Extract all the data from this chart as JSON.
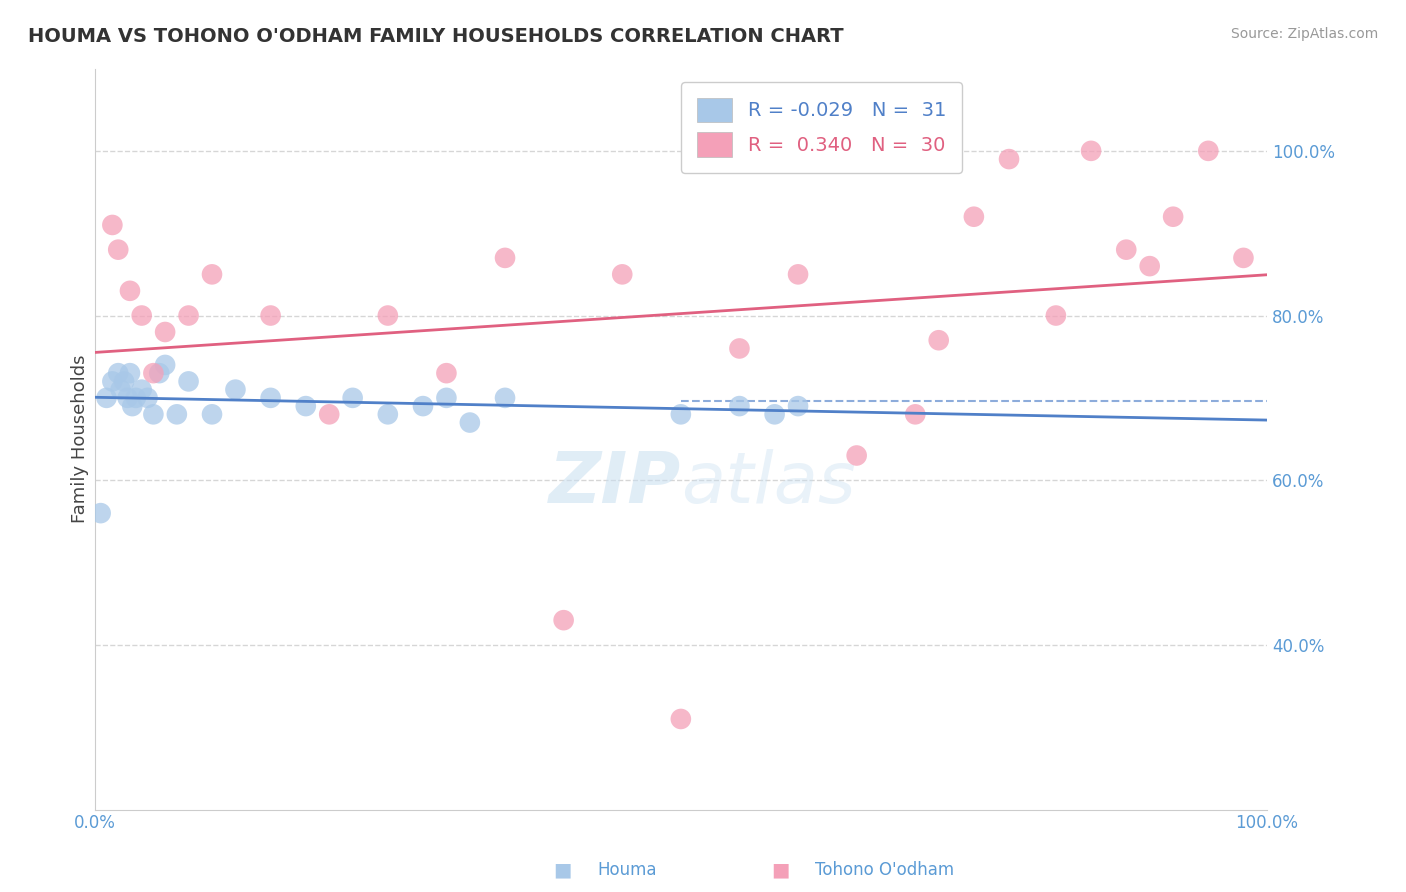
{
  "title": "HOUMA VS TOHONO O'ODHAM FAMILY HOUSEHOLDS CORRELATION CHART",
  "source": "Source: ZipAtlas.com",
  "ylabel": "Family Households",
  "houma_R": -0.029,
  "houma_N": 31,
  "tohono_R": 0.34,
  "tohono_N": 30,
  "houma_color": "#A8C8E8",
  "tohono_color": "#F4A0B8",
  "houma_line_color": "#5080C8",
  "tohono_line_color": "#E06080",
  "background_color": "#FFFFFF",
  "grid_color": "#CCCCCC",
  "houma_x": [
    0.5,
    1.0,
    1.5,
    2.0,
    2.2,
    2.5,
    2.8,
    3.0,
    3.2,
    3.5,
    4.0,
    4.5,
    5.0,
    5.5,
    6.0,
    7.0,
    8.0,
    10.0,
    12.0,
    15.0,
    18.0,
    22.0,
    25.0,
    28.0,
    30.0,
    32.0,
    35.0,
    50.0,
    55.0,
    58.0,
    60.0
  ],
  "houma_y": [
    56.0,
    70.0,
    72.0,
    73.0,
    71.0,
    72.0,
    70.0,
    73.0,
    69.0,
    70.0,
    71.0,
    70.0,
    68.0,
    73.0,
    74.0,
    68.0,
    72.0,
    68.0,
    71.0,
    70.0,
    69.0,
    70.0,
    68.0,
    69.0,
    70.0,
    67.0,
    70.0,
    68.0,
    69.0,
    68.0,
    69.0
  ],
  "tohono_x": [
    1.5,
    2.0,
    3.0,
    4.0,
    5.0,
    6.0,
    8.0,
    10.0,
    15.0,
    20.0,
    25.0,
    30.0,
    35.0,
    40.0,
    45.0,
    50.0,
    55.0,
    60.0,
    65.0,
    70.0,
    72.0,
    75.0,
    78.0,
    82.0,
    85.0,
    88.0,
    90.0,
    92.0,
    95.0,
    98.0
  ],
  "tohono_y": [
    91.0,
    88.0,
    83.0,
    80.0,
    73.0,
    78.0,
    80.0,
    85.0,
    80.0,
    68.0,
    80.0,
    73.0,
    87.0,
    43.0,
    85.0,
    31.0,
    76.0,
    85.0,
    63.0,
    68.0,
    77.0,
    92.0,
    99.0,
    80.0,
    100.0,
    88.0,
    86.0,
    92.0,
    100.0,
    87.0
  ],
  "xlim": [
    0,
    100
  ],
  "ylim": [
    20,
    110
  ],
  "right_yticks": [
    40,
    60,
    80,
    100
  ],
  "grid_yticks": [
    60,
    80,
    100
  ],
  "dashed_grid_yticks": [
    40,
    60,
    80,
    100
  ],
  "watermark": "ZIPatlas"
}
